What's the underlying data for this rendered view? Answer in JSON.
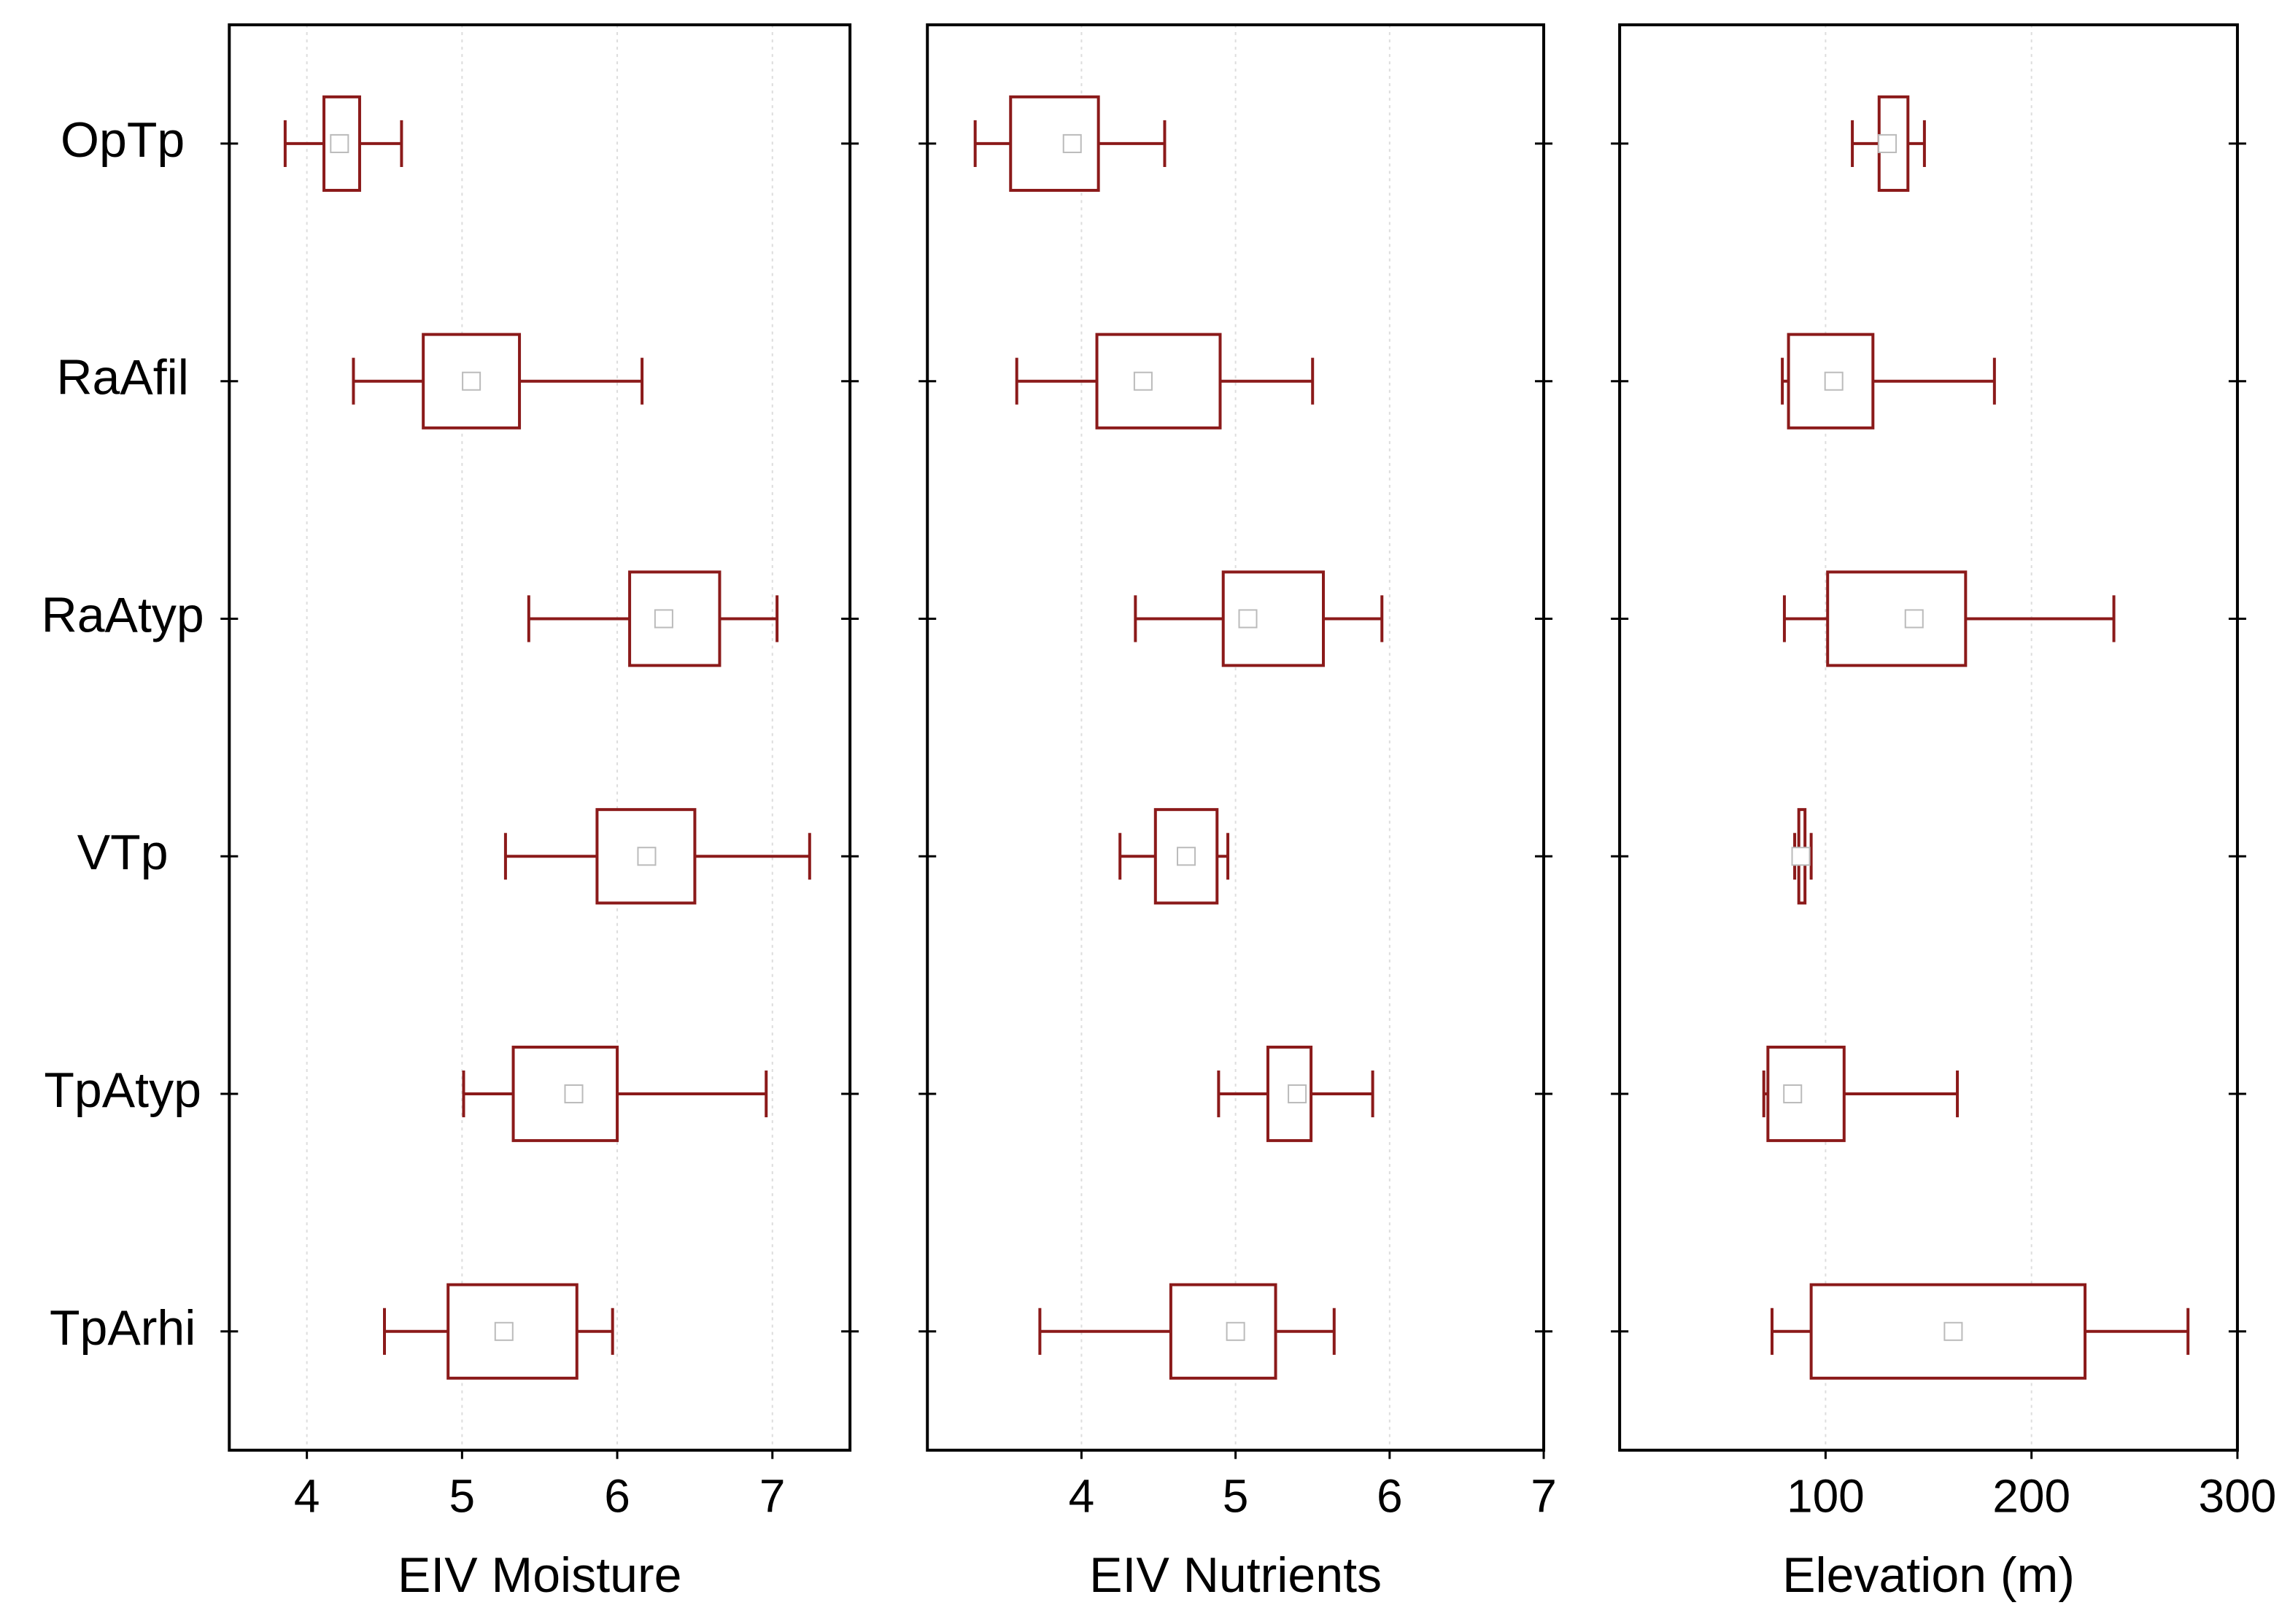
{
  "chart_data": [
    {
      "type": "box",
      "x_label": "EIV Moisture",
      "color": "#8b1a1a",
      "categories": [
        "OpTp",
        "RaAfil",
        "RaAtyp",
        "VTp",
        "TpAtyp",
        "TpArhi"
      ],
      "xlim": [
        3.5,
        7.5
      ],
      "xticks": [
        4,
        5,
        6,
        7
      ],
      "grid": true,
      "whisker_low": [
        3.86,
        4.3,
        5.43,
        5.28,
        5.01,
        4.5
      ],
      "q1": [
        4.11,
        4.75,
        6.08,
        5.87,
        5.33,
        4.91
      ],
      "mean": [
        4.21,
        5.06,
        6.3,
        6.19,
        5.72,
        5.27
      ],
      "q3": [
        4.34,
        5.37,
        6.66,
        6.5,
        6.0,
        5.74
      ],
      "whisker_high": [
        4.61,
        6.16,
        7.03,
        7.24,
        6.96,
        5.97
      ]
    },
    {
      "type": "box",
      "x_label": "EIV Nutrients",
      "color": "#8b1a1a",
      "xlim": [
        3,
        7
      ],
      "xticks": [
        4,
        5,
        6,
        7
      ],
      "grid": true,
      "whisker_low": [
        3.31,
        3.58,
        4.35,
        4.25,
        4.89,
        3.73
      ],
      "q1": [
        3.54,
        4.1,
        4.92,
        4.48,
        5.21,
        4.58
      ],
      "mean": [
        3.94,
        4.4,
        5.08,
        4.68,
        5.4,
        5.0
      ],
      "q3": [
        4.11,
        4.9,
        5.57,
        4.88,
        5.49,
        5.26
      ],
      "whisker_high": [
        4.54,
        5.5,
        5.95,
        4.95,
        5.89,
        5.64
      ]
    },
    {
      "type": "box",
      "x_label": "Elevation (m)",
      "color": "#8b1a1a",
      "xlim": [
        0,
        300
      ],
      "xticks": [
        100,
        200,
        300
      ],
      "grid": true,
      "whisker_low": [
        113,
        79,
        80,
        85,
        70,
        74
      ],
      "q1": [
        126,
        82,
        101,
        87,
        72,
        93
      ],
      "mean": [
        130,
        104,
        143,
        88,
        84,
        162
      ],
      "q3": [
        140,
        123,
        168,
        90,
        109,
        226
      ],
      "whisker_high": [
        148,
        182,
        240,
        93,
        164,
        276
      ]
    }
  ]
}
